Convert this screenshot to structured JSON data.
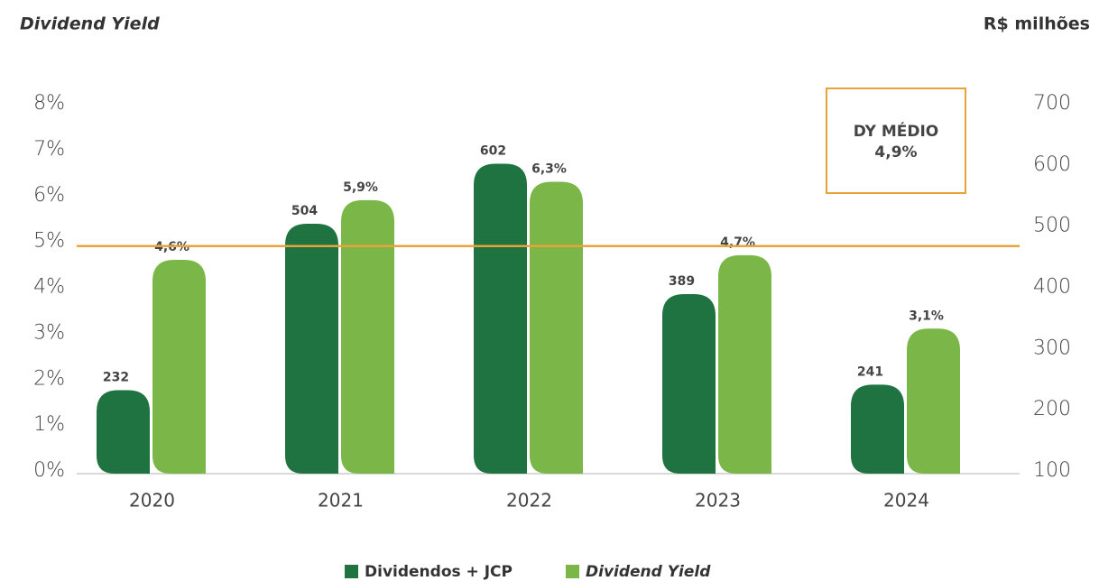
{
  "chart_data": {
    "type": "bar",
    "ylabel": "Dividend Yield",
    "y2label": "R$ milhões",
    "categories": [
      "2020",
      "2021",
      "2022",
      "2023",
      "2024"
    ],
    "series": [
      {
        "name": "Dividendos + JCP",
        "color": "#1e7340",
        "axis": "y2",
        "values": [
          232,
          504,
          602,
          389,
          241
        ]
      },
      {
        "name": "Dividend Yield",
        "color": "#7ab648",
        "values": [
          4.6,
          5.9,
          6.3,
          4.7,
          3.1
        ],
        "value_labels": [
          "4,6%",
          "5,9%",
          "6,3%",
          "4,7%",
          "3,1%"
        ]
      }
    ],
    "ylim": [
      0,
      8
    ],
    "yticks": [
      {
        "value": 0,
        "label": "0%"
      },
      {
        "value": 1,
        "label": "1%"
      },
      {
        "value": 2,
        "label": "2%"
      },
      {
        "value": 3,
        "label": "3%"
      },
      {
        "value": 4,
        "label": "4%"
      },
      {
        "value": 5,
        "label": "5%"
      },
      {
        "value": 6,
        "label": "6%"
      },
      {
        "value": 7,
        "label": "7%"
      },
      {
        "value": 8,
        "label": "8%"
      }
    ],
    "y2lim": [
      100,
      700
    ],
    "y2ticks": [
      100,
      200,
      300,
      400,
      500,
      600,
      700
    ],
    "average": {
      "label": "DY MÉDIO",
      "value": 4.9,
      "value_label": "4,9%",
      "color": "#e8a33a"
    },
    "legend": "bottom"
  }
}
